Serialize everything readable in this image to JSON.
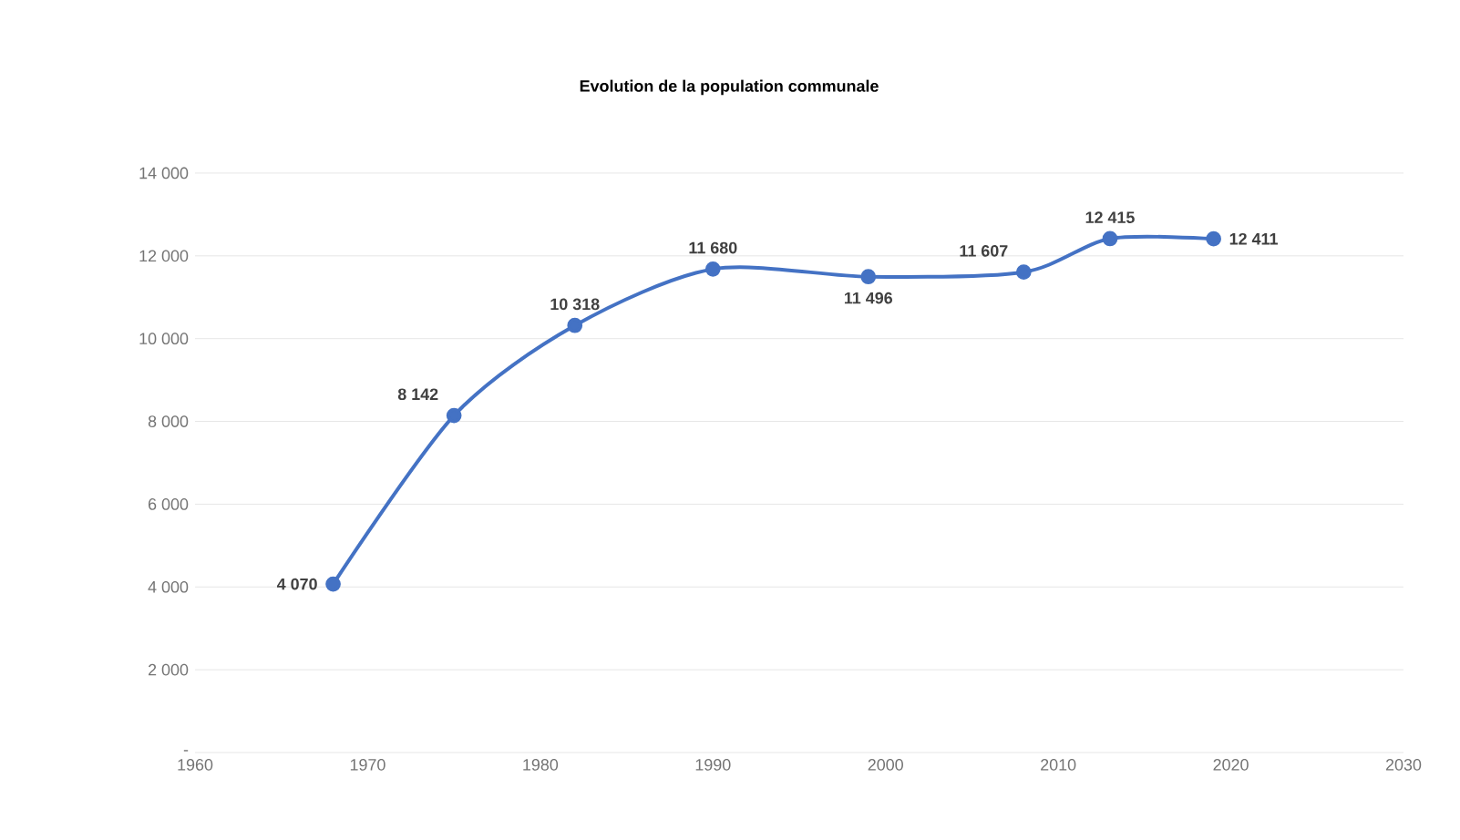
{
  "chart_data": {
    "type": "line",
    "title": "Evolution de la population communale",
    "x": [
      1968,
      1975,
      1982,
      1990,
      1999,
      2008,
      2013,
      2019
    ],
    "series": [
      {
        "color": "#4472c4",
        "values": [
          4070,
          8142,
          10318,
          11680,
          11496,
          11607,
          12415,
          12411
        ],
        "value_labels": [
          "4 070",
          "8 142",
          "10 318",
          "11 680",
          "11 496",
          "11 607",
          "12 415",
          "12 411"
        ]
      }
    ],
    "xlim": [
      1960,
      2030
    ],
    "xticks": [
      1960,
      1970,
      1980,
      1990,
      2000,
      2010,
      2020,
      2030
    ],
    "ylim": [
      0,
      14000
    ],
    "yticks": [
      {
        "value": 0,
        "label": "-"
      },
      {
        "value": 2000,
        "label": "2 000"
      },
      {
        "value": 4000,
        "label": "4 000"
      },
      {
        "value": 6000,
        "label": "6 000"
      },
      {
        "value": 8000,
        "label": "8 000"
      },
      {
        "value": 10000,
        "label": "10 000"
      },
      {
        "value": 12000,
        "label": "12 000"
      },
      {
        "value": 14000,
        "label": "14 000"
      }
    ],
    "grid": "y",
    "marker": "circle",
    "line_style": "solid",
    "legend": false
  }
}
